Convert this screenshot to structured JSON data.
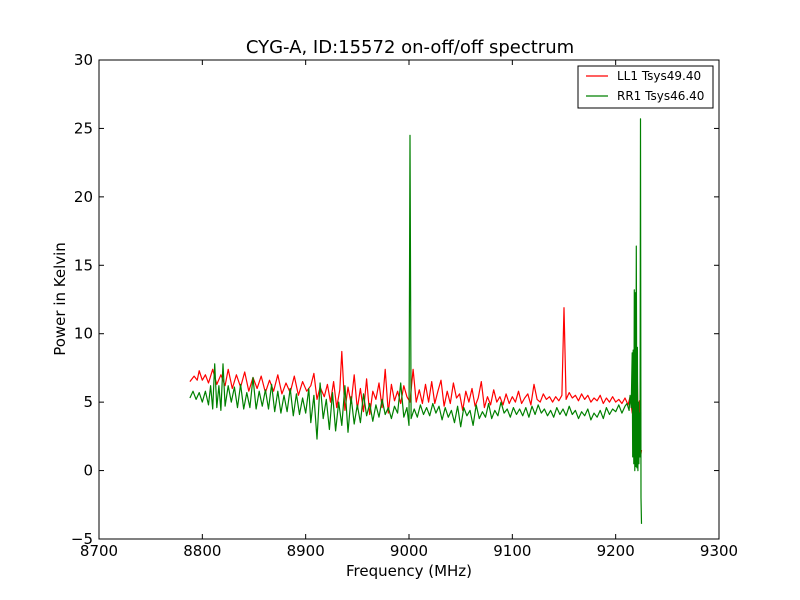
{
  "chart_data": {
    "type": "line",
    "title": "CYG-A, ID:15572 on-off/off spectrum",
    "xlabel": "Frequency (MHz)",
    "ylabel": "Power in Kelvin",
    "xlim": [
      8700,
      9300
    ],
    "ylim": [
      -5,
      30
    ],
    "xticks": [
      8700,
      8800,
      8900,
      9000,
      9100,
      9200,
      9300
    ],
    "yticks": [
      -5,
      0,
      5,
      10,
      15,
      20,
      25,
      30
    ],
    "legend": "top-right",
    "grid": false,
    "series": [
      {
        "name": "LL1 Tsys49.40",
        "color": "#ff0000",
        "points": [
          [
            8788,
            6.5
          ],
          [
            8792,
            6.9
          ],
          [
            8795,
            6.6
          ],
          [
            8797,
            7.3
          ],
          [
            8800,
            6.6
          ],
          [
            8803,
            7.0
          ],
          [
            8806,
            6.4
          ],
          [
            8810,
            7.4
          ],
          [
            8814,
            6.3
          ],
          [
            8818,
            7.0
          ],
          [
            8822,
            6.2
          ],
          [
            8825,
            7.4
          ],
          [
            8829,
            6.0
          ],
          [
            8833,
            7.0
          ],
          [
            8837,
            6.1
          ],
          [
            8841,
            7.2
          ],
          [
            8845,
            5.8
          ],
          [
            8849,
            6.8
          ],
          [
            8853,
            6.0
          ],
          [
            8857,
            6.9
          ],
          [
            8861,
            5.7
          ],
          [
            8865,
            6.6
          ],
          [
            8869,
            5.8
          ],
          [
            8873,
            7.0
          ],
          [
            8877,
            5.6
          ],
          [
            8881,
            6.4
          ],
          [
            8885,
            5.7
          ],
          [
            8889,
            6.9
          ],
          [
            8893,
            5.5
          ],
          [
            8897,
            6.5
          ],
          [
            8901,
            5.8
          ],
          [
            8905,
            6.2
          ],
          [
            8908,
            7.1
          ],
          [
            8911,
            5.2
          ],
          [
            8914,
            6.1
          ],
          [
            8918,
            5.4
          ],
          [
            8921,
            6.3
          ],
          [
            8924,
            5.0
          ],
          [
            8927,
            6.5
          ],
          [
            8930,
            4.6
          ],
          [
            8933,
            5.9
          ],
          [
            8935,
            8.7
          ],
          [
            8938,
            4.4
          ],
          [
            8941,
            6.1
          ],
          [
            8944,
            4.9
          ],
          [
            8947,
            7.0
          ],
          [
            8950,
            4.5
          ],
          [
            8953,
            6.0
          ],
          [
            8956,
            4.3
          ],
          [
            8959,
            6.7
          ],
          [
            8962,
            4.1
          ],
          [
            8965,
            5.8
          ],
          [
            8968,
            5.2
          ],
          [
            8971,
            6.4
          ],
          [
            8974,
            4.6
          ],
          [
            8977,
            7.4
          ],
          [
            8980,
            4.2
          ],
          [
            8983,
            6.3
          ],
          [
            8986,
            5.1
          ],
          [
            8989,
            5.8
          ],
          [
            8992,
            4.9
          ],
          [
            8995,
            6.2
          ],
          [
            8998,
            5.4
          ],
          [
            9001,
            5.0
          ],
          [
            9004,
            7.4
          ],
          [
            9007,
            5.0
          ],
          [
            9010,
            5.9
          ],
          [
            9013,
            4.9
          ],
          [
            9016,
            6.3
          ],
          [
            9019,
            5.0
          ],
          [
            9022,
            6.5
          ],
          [
            9025,
            4.9
          ],
          [
            9028,
            5.8
          ],
          [
            9031,
            6.6
          ],
          [
            9034,
            4.7
          ],
          [
            9037,
            5.8
          ],
          [
            9040,
            4.9
          ],
          [
            9043,
            6.4
          ],
          [
            9046,
            5.3
          ],
          [
            9049,
            5.6
          ],
          [
            9052,
            4.4
          ],
          [
            9055,
            5.8
          ],
          [
            9058,
            5.0
          ],
          [
            9061,
            6.0
          ],
          [
            9064,
            4.7
          ],
          [
            9067,
            5.3
          ],
          [
            9070,
            6.5
          ],
          [
            9073,
            4.6
          ],
          [
            9076,
            5.4
          ],
          [
            9079,
            4.8
          ],
          [
            9082,
            5.9
          ],
          [
            9085,
            5.0
          ],
          [
            9088,
            5.4
          ],
          [
            9091,
            4.8
          ],
          [
            9094,
            5.6
          ],
          [
            9097,
            4.9
          ],
          [
            9100,
            5.4
          ],
          [
            9103,
            5.0
          ],
          [
            9106,
            5.8
          ],
          [
            9109,
            4.9
          ],
          [
            9112,
            5.3
          ],
          [
            9115,
            5.6
          ],
          [
            9118,
            4.8
          ],
          [
            9121,
            6.3
          ],
          [
            9124,
            5.2
          ],
          [
            9127,
            5.0
          ],
          [
            9130,
            5.6
          ],
          [
            9133,
            5.2
          ],
          [
            9136,
            5.4
          ],
          [
            9139,
            5.0
          ],
          [
            9142,
            5.4
          ],
          [
            9145,
            5.1
          ],
          [
            9148,
            5.5
          ],
          [
            9150,
            11.9
          ],
          [
            9152,
            5.2
          ],
          [
            9155,
            5.7
          ],
          [
            9158,
            5.3
          ],
          [
            9161,
            5.5
          ],
          [
            9164,
            5.1
          ],
          [
            9167,
            5.6
          ],
          [
            9170,
            5.2
          ],
          [
            9173,
            5.5
          ],
          [
            9176,
            5.0
          ],
          [
            9179,
            5.3
          ],
          [
            9182,
            5.1
          ],
          [
            9185,
            5.5
          ],
          [
            9188,
            4.9
          ],
          [
            9191,
            5.3
          ],
          [
            9194,
            5.0
          ],
          [
            9197,
            5.4
          ],
          [
            9200,
            5.0
          ],
          [
            9203,
            5.2
          ],
          [
            9206,
            4.9
          ],
          [
            9209,
            5.3
          ],
          [
            9212,
            4.8
          ],
          [
            9214,
            5.4
          ],
          [
            9216,
            4.2
          ],
          [
            9217,
            6.9
          ],
          [
            9218,
            1.2
          ],
          [
            9219,
            7.9
          ],
          [
            9220,
            2.0
          ],
          [
            9221,
            6.5
          ],
          [
            9222,
            0.9
          ],
          [
            9223,
            5.1
          ],
          [
            9224,
            1.0
          ],
          [
            9225,
            1.5
          ]
        ]
      },
      {
        "name": "RR1 Tsys46.40",
        "color": "#008000",
        "points": [
          [
            8788,
            5.3
          ],
          [
            8791,
            5.8
          ],
          [
            8794,
            5.2
          ],
          [
            8797,
            5.7
          ],
          [
            8800,
            5.0
          ],
          [
            8803,
            5.8
          ],
          [
            8806,
            4.8
          ],
          [
            8808,
            6.2
          ],
          [
            8810,
            4.5
          ],
          [
            8812,
            7.8
          ],
          [
            8814,
            4.6
          ],
          [
            8816,
            6.2
          ],
          [
            8818,
            4.4
          ],
          [
            8820,
            7.8
          ],
          [
            8822,
            4.7
          ],
          [
            8825,
            6.2
          ],
          [
            8828,
            5.0
          ],
          [
            8831,
            6.1
          ],
          [
            8834,
            4.6
          ],
          [
            8837,
            6.3
          ],
          [
            8840,
            4.5
          ],
          [
            8843,
            5.7
          ],
          [
            8846,
            4.6
          ],
          [
            8849,
            6.8
          ],
          [
            8852,
            4.5
          ],
          [
            8855,
            5.8
          ],
          [
            8858,
            4.7
          ],
          [
            8861,
            5.9
          ],
          [
            8864,
            4.5
          ],
          [
            8867,
            6.3
          ],
          [
            8870,
            4.3
          ],
          [
            8873,
            5.8
          ],
          [
            8876,
            4.2
          ],
          [
            8879,
            5.5
          ],
          [
            8882,
            4.3
          ],
          [
            8885,
            6.0
          ],
          [
            8888,
            4.0
          ],
          [
            8891,
            5.6
          ],
          [
            8894,
            4.1
          ],
          [
            8897,
            5.3
          ],
          [
            8900,
            4.2
          ],
          [
            8903,
            6.0
          ],
          [
            8905,
            3.5
          ],
          [
            8908,
            5.5
          ],
          [
            8911,
            2.3
          ],
          [
            8914,
            6.4
          ],
          [
            8917,
            3.8
          ],
          [
            8920,
            5.2
          ],
          [
            8923,
            3.0
          ],
          [
            8926,
            5.7
          ],
          [
            8929,
            2.9
          ],
          [
            8932,
            5.0
          ],
          [
            8935,
            3.3
          ],
          [
            8938,
            6.2
          ],
          [
            8941,
            2.8
          ],
          [
            8944,
            5.4
          ],
          [
            8947,
            3.4
          ],
          [
            8950,
            4.8
          ],
          [
            8953,
            3.5
          ],
          [
            8956,
            5.6
          ],
          [
            8959,
            4.0
          ],
          [
            8962,
            4.9
          ],
          [
            8965,
            3.6
          ],
          [
            8968,
            4.8
          ],
          [
            8971,
            3.9
          ],
          [
            8974,
            5.2
          ],
          [
            8977,
            4.1
          ],
          [
            8980,
            4.6
          ],
          [
            8983,
            3.8
          ],
          [
            8986,
            4.7
          ],
          [
            8989,
            4.2
          ],
          [
            8992,
            6.4
          ],
          [
            8995,
            3.9
          ],
          [
            8998,
            4.6
          ],
          [
            9000,
            3.3
          ],
          [
            9001,
            24.5
          ],
          [
            9002,
            3.8
          ],
          [
            9005,
            4.5
          ],
          [
            9008,
            3.9
          ],
          [
            9011,
            4.8
          ],
          [
            9014,
            4.1
          ],
          [
            9017,
            4.6
          ],
          [
            9020,
            4.0
          ],
          [
            9023,
            4.9
          ],
          [
            9026,
            4.2
          ],
          [
            9029,
            4.7
          ],
          [
            9032,
            3.7
          ],
          [
            9035,
            4.6
          ],
          [
            9038,
            3.9
          ],
          [
            9041,
            4.4
          ],
          [
            9044,
            3.5
          ],
          [
            9047,
            4.7
          ],
          [
            9050,
            3.2
          ],
          [
            9053,
            4.6
          ],
          [
            9056,
            4.0
          ],
          [
            9059,
            4.4
          ],
          [
            9062,
            3.3
          ],
          [
            9065,
            4.8
          ],
          [
            9068,
            3.8
          ],
          [
            9071,
            4.3
          ],
          [
            9074,
            3.9
          ],
          [
            9077,
            4.9
          ],
          [
            9080,
            3.8
          ],
          [
            9083,
            4.4
          ],
          [
            9086,
            4.0
          ],
          [
            9089,
            5.0
          ],
          [
            9092,
            4.2
          ],
          [
            9095,
            4.5
          ],
          [
            9098,
            3.9
          ],
          [
            9101,
            4.6
          ],
          [
            9104,
            4.1
          ],
          [
            9107,
            4.5
          ],
          [
            9110,
            4.0
          ],
          [
            9113,
            4.6
          ],
          [
            9116,
            3.9
          ],
          [
            9119,
            4.7
          ],
          [
            9122,
            4.1
          ],
          [
            9125,
            4.8
          ],
          [
            9128,
            4.2
          ],
          [
            9131,
            4.5
          ],
          [
            9134,
            4.0
          ],
          [
            9137,
            4.4
          ],
          [
            9140,
            3.9
          ],
          [
            9143,
            4.6
          ],
          [
            9146,
            4.1
          ],
          [
            9149,
            4.5
          ],
          [
            9152,
            4.0
          ],
          [
            9155,
            4.7
          ],
          [
            9158,
            4.1
          ],
          [
            9161,
            4.4
          ],
          [
            9164,
            3.8
          ],
          [
            9167,
            4.3
          ],
          [
            9170,
            4.0
          ],
          [
            9173,
            4.5
          ],
          [
            9176,
            3.7
          ],
          [
            9179,
            4.2
          ],
          [
            9182,
            3.9
          ],
          [
            9185,
            4.4
          ],
          [
            9188,
            3.8
          ],
          [
            9191,
            4.6
          ],
          [
            9194,
            4.1
          ],
          [
            9197,
            4.5
          ],
          [
            9200,
            4.3
          ],
          [
            9203,
            4.8
          ],
          [
            9206,
            4.2
          ],
          [
            9209,
            4.7
          ],
          [
            9211,
            4.9
          ],
          [
            9213,
            4.4
          ],
          [
            9214,
            5.5
          ],
          [
            9215,
            4.6
          ],
          [
            9216,
            8.6
          ],
          [
            9216.5,
            1.0
          ],
          [
            9217,
            8.8
          ],
          [
            9217.5,
            0.5
          ],
          [
            9218,
            13.2
          ],
          [
            9218.5,
            0.0
          ],
          [
            9219,
            13.0
          ],
          [
            9219.5,
            0.3
          ],
          [
            9220,
            16.4
          ],
          [
            9220.5,
            0.2
          ],
          [
            9221,
            9.0
          ],
          [
            9221.5,
            0.0
          ],
          [
            9222,
            5.0
          ],
          [
            9222.5,
            0.5
          ],
          [
            9223,
            4.2
          ],
          [
            9223.5,
            1.0
          ],
          [
            9224,
            25.7
          ],
          [
            9224.5,
            -2.0
          ],
          [
            9225,
            -3.9
          ]
        ]
      }
    ]
  }
}
